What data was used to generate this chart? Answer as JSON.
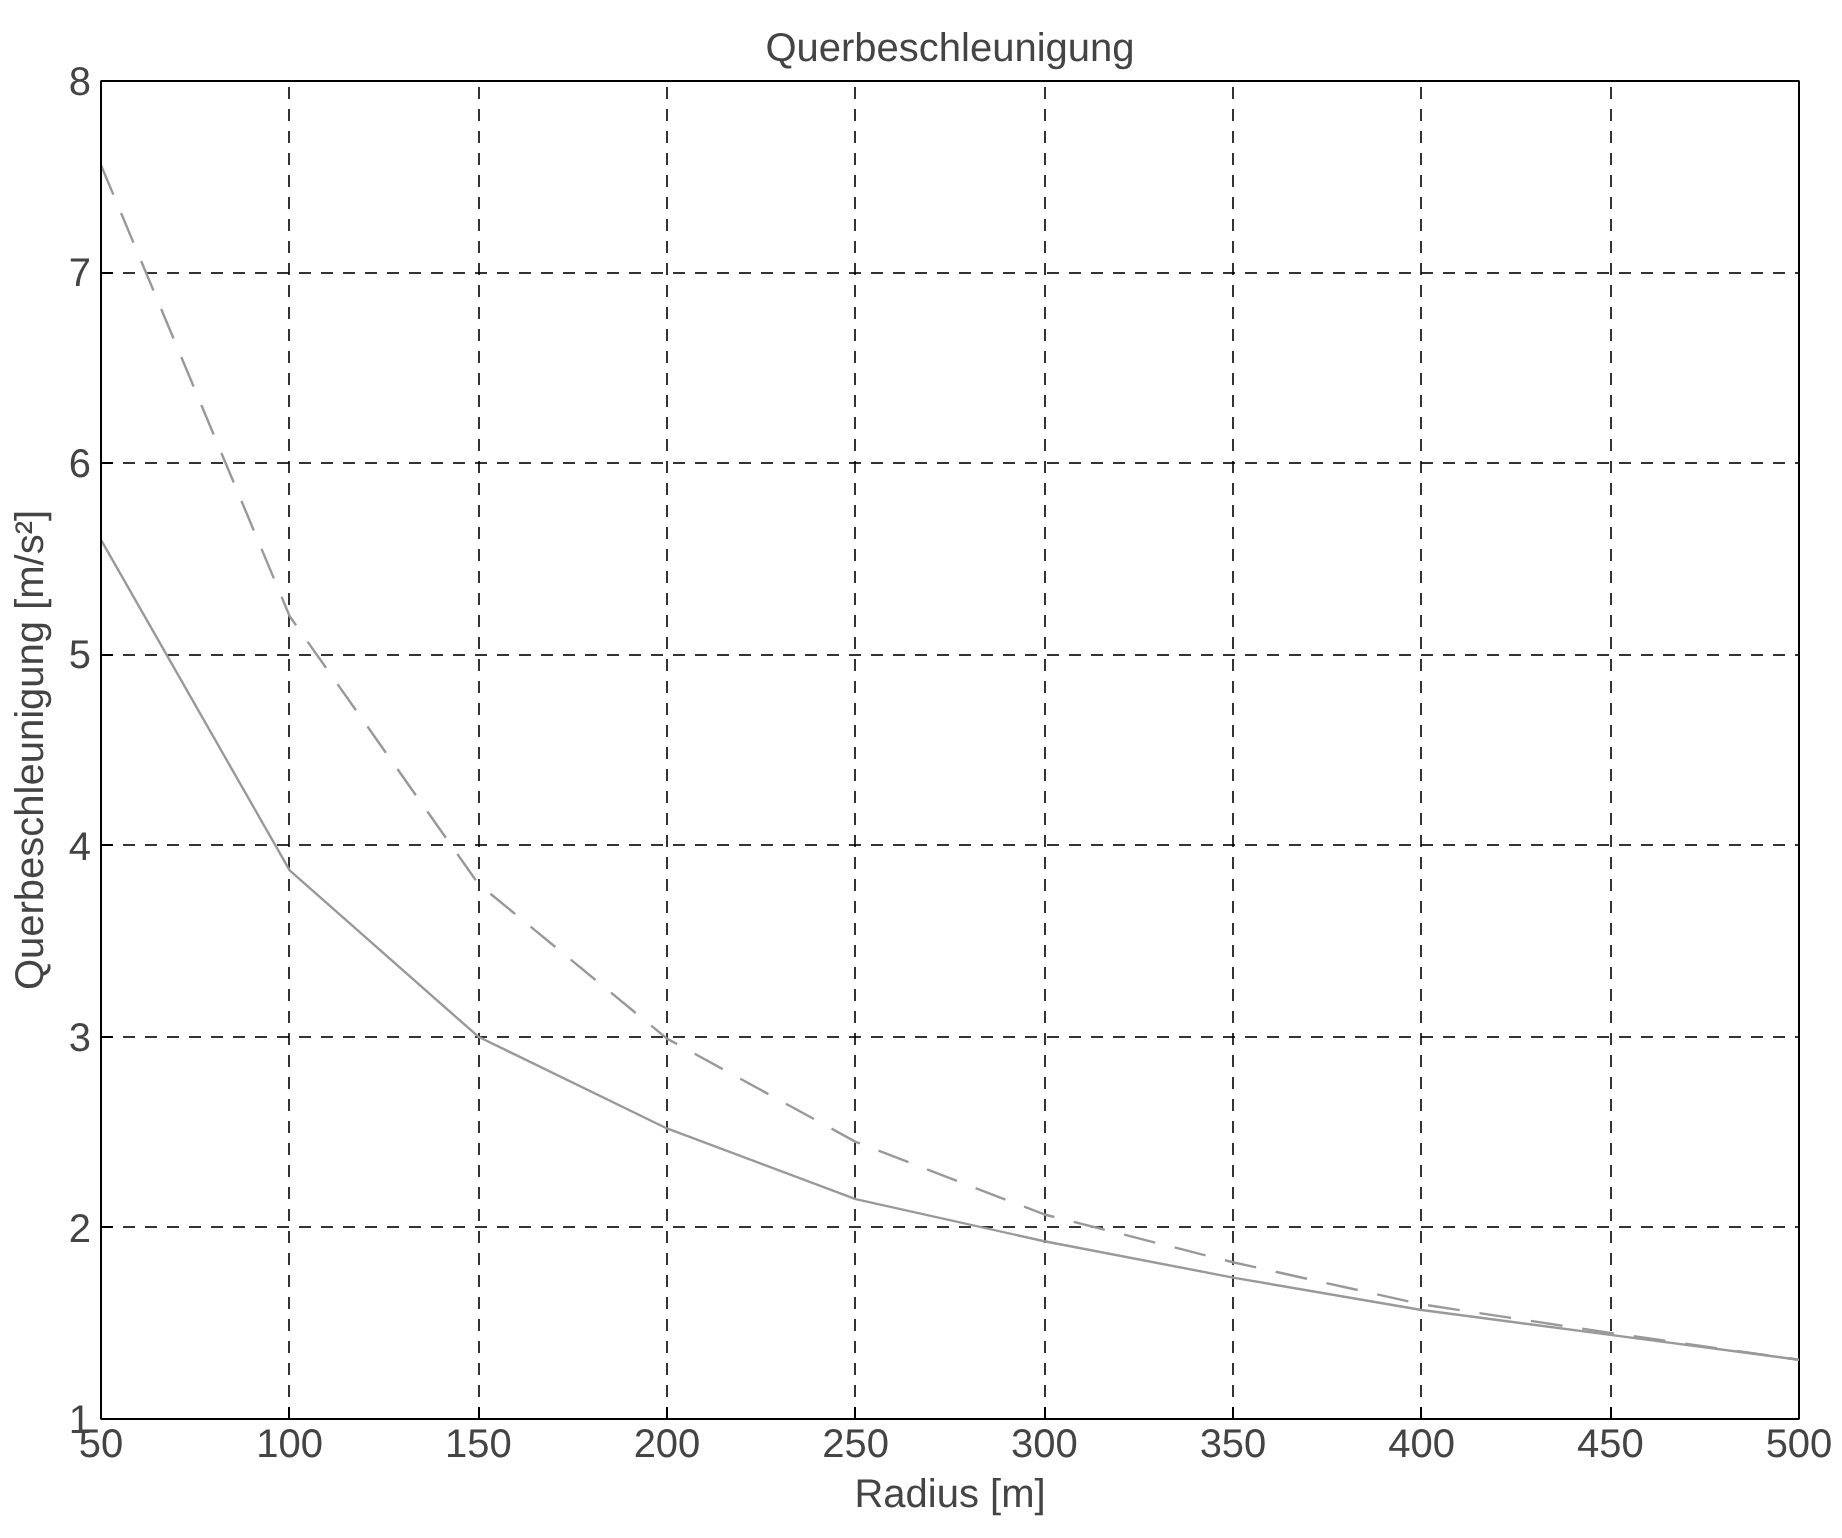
{
  "chart_data": {
    "type": "line",
    "title": "Querbeschleunigung",
    "xlabel": "Radius [m]",
    "ylabel": "Querbeschleunigung [m/s²]",
    "x": [
      50,
      100,
      150,
      200,
      250,
      300,
      350,
      400,
      450,
      500
    ],
    "series": [
      {
        "color": "#999999",
        "line_style": "solid",
        "values": [
          5.6,
          3.87,
          3.0,
          2.52,
          2.15,
          1.93,
          1.74,
          1.57,
          1.44,
          1.31
        ]
      },
      {
        "color": "#999999",
        "line_style": "dashed",
        "values": [
          7.56,
          5.2,
          3.8,
          2.99,
          2.45,
          2.07,
          1.82,
          1.6,
          1.45,
          1.31
        ]
      }
    ],
    "xlim": [
      50,
      500
    ],
    "ylim": [
      1,
      8
    ],
    "xticks": [
      50,
      100,
      150,
      200,
      250,
      300,
      350,
      400,
      450,
      500
    ],
    "yticks": [
      1,
      2,
      3,
      4,
      5,
      6,
      7,
      8
    ],
    "grid": true,
    "marker": "none"
  }
}
